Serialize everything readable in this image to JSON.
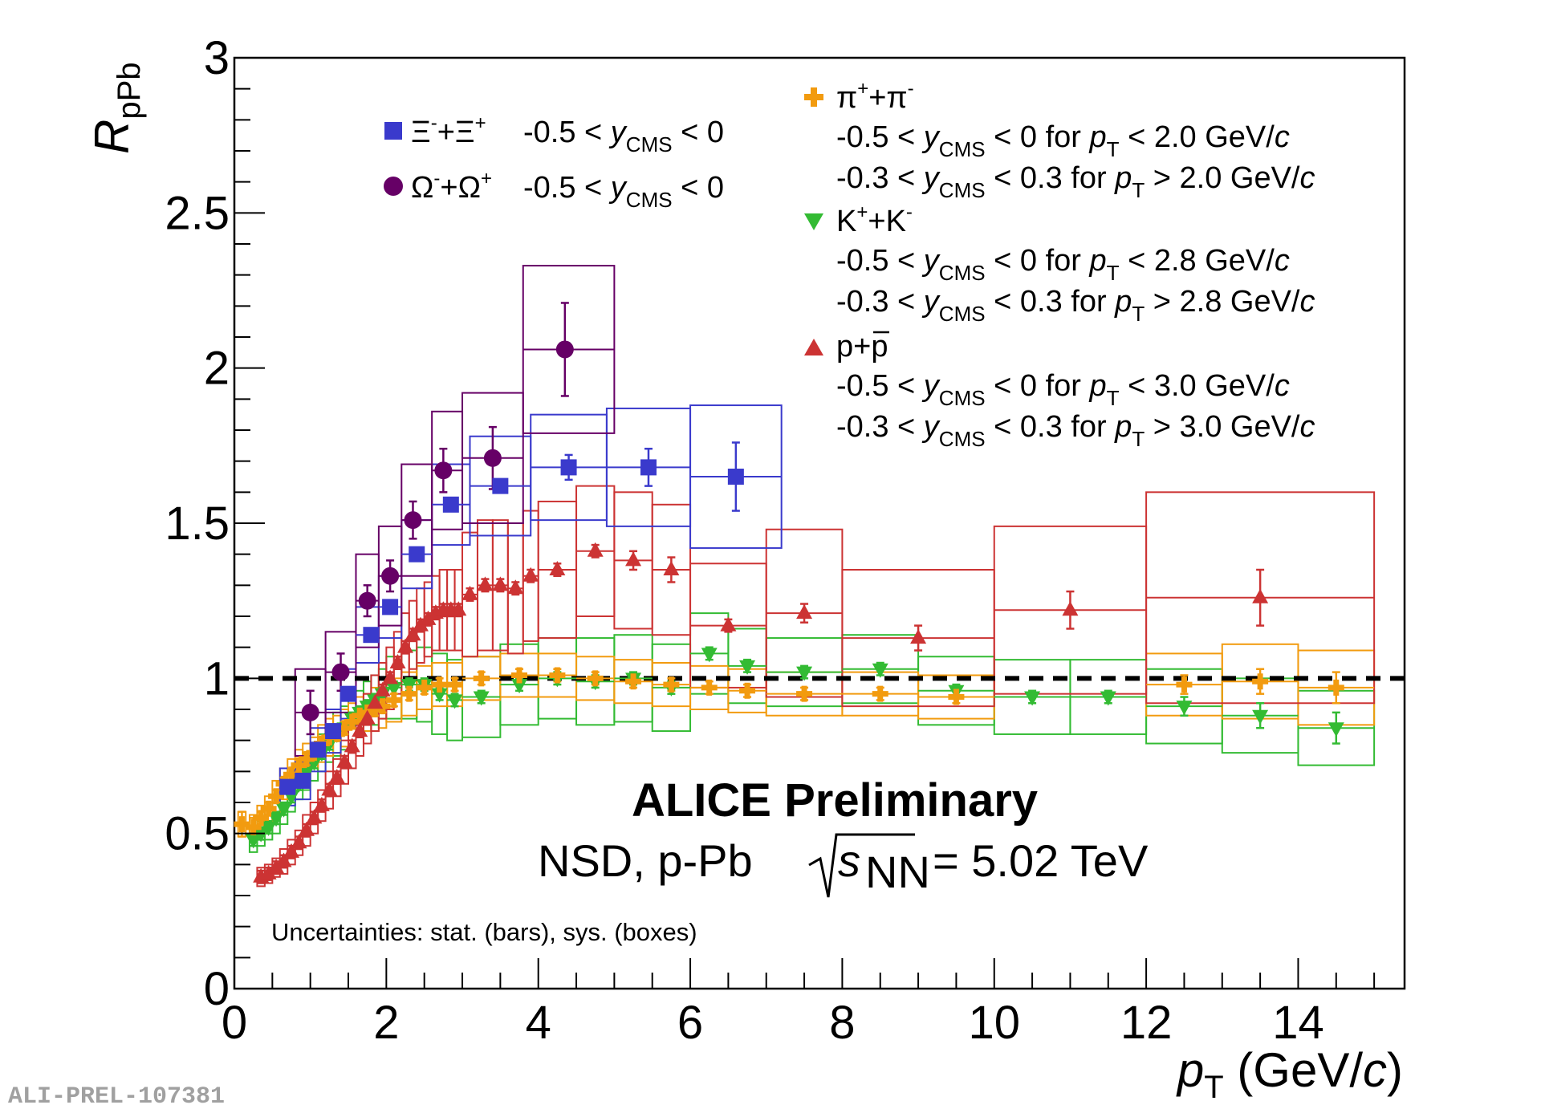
{
  "chart_data": {
    "type": "scatter",
    "title": "",
    "xlabel": "p_T (GeV/c)",
    "ylabel": "R_pPb",
    "xlim": [
      0,
      15.4
    ],
    "ylim": [
      0,
      3
    ],
    "x_ticks": [
      "0",
      "2",
      "4",
      "6",
      "8",
      "10",
      "12",
      "14"
    ],
    "y_ticks": [
      "0",
      "0.5",
      "1",
      "1.5",
      "2",
      "2.5",
      "3"
    ],
    "reference_line": 1.0,
    "experiment_label": "ALICE Preliminary",
    "system_label": {
      "prefix": "NSD, p-Pb",
      "s": "s",
      "sub": "NN",
      "suffix": "= 5.02 TeV"
    },
    "uncertainty_note": "Uncertainties: stat. (bars), sys. (boxes)",
    "figure_id": "ALI-PREL-107381",
    "colors": {
      "xi": "#3a3acc",
      "omega": "#660066",
      "pion": "#f29b0f",
      "kaon": "#33bb33",
      "proton": "#cc3333"
    },
    "legend": {
      "xi": {
        "label": "Ξ⁻+Ξ⁺",
        "range": "-0.5 < y_CMS < 0"
      },
      "omega": {
        "label": "Ω⁻+Ω⁺",
        "range": "-0.5 < y_CMS < 0"
      },
      "pion": {
        "label": "π⁺+π⁻",
        "rows": [
          "-0.5 < y_CMS < 0    for p_T < 2.0 GeV/c",
          "-0.3 < y_CMS < 0.3 for p_T > 2.0 GeV/c"
        ]
      },
      "kaon": {
        "label": "K⁺+K⁻",
        "rows": [
          "-0.5 < y_CMS < 0    for p_T < 2.8 GeV/c",
          "-0.3 < y_CMS < 0.3 for p_T > 2.8 GeV/c"
        ]
      },
      "proton": {
        "label": "p+p",
        "rows": [
          "-0.5 < y_CMS < 0    for p_T < 3.0 GeV/c",
          "-0.3 < y_CMS < 0.3 for p_T > 3.0 GeV/c"
        ]
      }
    },
    "series": [
      {
        "name": "Xi",
        "key": "xi",
        "marker": "square",
        "x": [
          0.7,
          0.9,
          1.1,
          1.3,
          1.5,
          1.8,
          2.05,
          2.4,
          2.85,
          3.5,
          4.4,
          5.45,
          6.6
        ],
        "y": [
          0.65,
          0.67,
          0.77,
          0.83,
          0.95,
          1.14,
          1.23,
          1.4,
          1.56,
          1.62,
          1.68,
          1.68,
          1.65
        ],
        "stat": [
          0.02,
          0.02,
          0.02,
          0.02,
          0.02,
          0.02,
          0.02,
          0.02,
          0.02,
          0.02,
          0.04,
          0.06,
          0.11
        ],
        "sys": [
          0.06,
          0.06,
          0.07,
          0.07,
          0.08,
          0.09,
          0.1,
          0.11,
          0.13,
          0.16,
          0.17,
          0.19,
          0.23
        ],
        "bin_lo": [
          0.6,
          0.8,
          1.0,
          1.2,
          1.4,
          1.6,
          1.9,
          2.2,
          2.6,
          3.1,
          3.9,
          4.9,
          6.0
        ],
        "bin_hi": [
          0.8,
          1.0,
          1.2,
          1.4,
          1.6,
          1.9,
          2.2,
          2.6,
          3.1,
          3.9,
          4.9,
          6.0,
          7.2
        ]
      },
      {
        "name": "Omega",
        "key": "omega",
        "marker": "circle",
        "x": [
          1.0,
          1.4,
          1.75,
          2.05,
          2.35,
          2.75,
          3.4,
          4.35
        ],
        "y": [
          0.89,
          1.02,
          1.25,
          1.33,
          1.51,
          1.67,
          1.71,
          2.06
        ],
        "stat": [
          0.07,
          0.06,
          0.05,
          0.05,
          0.06,
          0.07,
          0.1,
          0.15
        ],
        "sys": [
          0.14,
          0.13,
          0.15,
          0.16,
          0.18,
          0.19,
          0.21,
          0.27
        ],
        "bin_lo": [
          0.8,
          1.2,
          1.6,
          1.9,
          2.2,
          2.6,
          3.0,
          3.8
        ],
        "bin_hi": [
          1.2,
          1.6,
          1.9,
          2.2,
          2.6,
          3.0,
          3.8,
          5.0
        ]
      },
      {
        "name": "pi+pi",
        "key": "pion",
        "marker": "cross",
        "x": [
          0.1,
          0.25,
          0.35,
          0.45,
          0.55,
          0.65,
          0.75,
          0.85,
          0.95,
          1.05,
          1.15,
          1.25,
          1.35,
          1.45,
          1.55,
          1.65,
          1.75,
          1.85,
          1.95,
          2.1,
          2.3,
          2.5,
          2.7,
          2.9,
          3.25,
          3.75,
          4.25,
          4.75,
          5.25,
          5.75,
          6.25,
          6.75,
          7.5,
          8.5,
          9.5,
          12.5,
          13.5,
          14.5
        ],
        "y": [
          0.53,
          0.52,
          0.55,
          0.58,
          0.62,
          0.66,
          0.69,
          0.72,
          0.74,
          0.76,
          0.79,
          0.81,
          0.82,
          0.84,
          0.86,
          0.88,
          0.89,
          0.9,
          0.91,
          0.93,
          0.95,
          0.97,
          0.98,
          0.98,
          1.0,
          1.01,
          1.01,
          1.0,
          0.99,
          0.98,
          0.97,
          0.96,
          0.95,
          0.95,
          0.94,
          0.98,
          0.99,
          0.97
        ],
        "stat": [
          0.04,
          0.03,
          0.02,
          0.02,
          0.02,
          0.02,
          0.02,
          0.02,
          0.02,
          0.02,
          0.02,
          0.02,
          0.02,
          0.02,
          0.02,
          0.02,
          0.02,
          0.02,
          0.02,
          0.02,
          0.02,
          0.02,
          0.02,
          0.02,
          0.02,
          0.02,
          0.02,
          0.02,
          0.02,
          0.02,
          0.02,
          0.02,
          0.02,
          0.02,
          0.02,
          0.03,
          0.04,
          0.05
        ],
        "sys": [
          0.04,
          0.04,
          0.04,
          0.04,
          0.05,
          0.05,
          0.05,
          0.05,
          0.05,
          0.05,
          0.06,
          0.06,
          0.06,
          0.06,
          0.06,
          0.06,
          0.06,
          0.07,
          0.07,
          0.07,
          0.07,
          0.07,
          0.07,
          0.07,
          0.07,
          0.07,
          0.07,
          0.07,
          0.07,
          0.07,
          0.07,
          0.07,
          0.07,
          0.07,
          0.07,
          0.1,
          0.12,
          0.12
        ],
        "bin_lo": [
          0.05,
          0.2,
          0.3,
          0.4,
          0.5,
          0.6,
          0.7,
          0.8,
          0.9,
          1.0,
          1.1,
          1.2,
          1.3,
          1.4,
          1.5,
          1.6,
          1.7,
          1.8,
          1.9,
          2.0,
          2.2,
          2.4,
          2.6,
          2.8,
          3.0,
          3.5,
          4.0,
          4.5,
          5.0,
          5.5,
          6.0,
          6.5,
          7.0,
          8.0,
          9.0,
          12.0,
          13.0,
          14.0
        ],
        "bin_hi": [
          0.15,
          0.3,
          0.4,
          0.5,
          0.6,
          0.7,
          0.8,
          0.9,
          1.0,
          1.1,
          1.2,
          1.3,
          1.4,
          1.5,
          1.6,
          1.7,
          1.8,
          1.9,
          2.0,
          2.2,
          2.4,
          2.6,
          2.8,
          3.0,
          3.5,
          4.0,
          4.5,
          5.0,
          5.5,
          6.0,
          6.5,
          7.0,
          8.0,
          9.0,
          10.0,
          13.0,
          14.0,
          15.0
        ]
      },
      {
        "name": "K+K",
        "key": "kaon",
        "marker": "triangle-down",
        "x": [
          0.25,
          0.35,
          0.45,
          0.55,
          0.65,
          0.75,
          0.85,
          0.95,
          1.05,
          1.15,
          1.25,
          1.35,
          1.45,
          1.55,
          1.65,
          1.75,
          1.85,
          1.95,
          2.1,
          2.3,
          2.5,
          2.7,
          2.9,
          3.25,
          3.75,
          4.25,
          4.75,
          5.25,
          5.75,
          6.25,
          6.75,
          7.5,
          8.5,
          9.5,
          10.5,
          11.5,
          12.5,
          13.5,
          14.5
        ],
        "y": [
          0.48,
          0.5,
          0.52,
          0.55,
          0.58,
          0.62,
          0.66,
          0.7,
          0.73,
          0.76,
          0.79,
          0.82,
          0.84,
          0.87,
          0.89,
          0.91,
          0.93,
          0.95,
          0.97,
          0.98,
          0.98,
          0.95,
          0.93,
          0.94,
          0.98,
          1.0,
          0.99,
          1.0,
          0.97,
          1.08,
          1.04,
          1.02,
          1.03,
          0.96,
          0.94,
          0.94,
          0.91,
          0.88,
          0.84
        ],
        "stat": [
          0.02,
          0.02,
          0.02,
          0.02,
          0.02,
          0.02,
          0.02,
          0.02,
          0.02,
          0.02,
          0.02,
          0.02,
          0.02,
          0.02,
          0.02,
          0.02,
          0.02,
          0.02,
          0.02,
          0.02,
          0.02,
          0.02,
          0.02,
          0.02,
          0.02,
          0.02,
          0.02,
          0.02,
          0.02,
          0.02,
          0.02,
          0.02,
          0.02,
          0.02,
          0.02,
          0.02,
          0.03,
          0.04,
          0.05
        ],
        "sys": [
          0.04,
          0.04,
          0.04,
          0.05,
          0.05,
          0.05,
          0.05,
          0.06,
          0.06,
          0.06,
          0.06,
          0.07,
          0.07,
          0.07,
          0.07,
          0.08,
          0.08,
          0.08,
          0.1,
          0.11,
          0.12,
          0.13,
          0.13,
          0.13,
          0.13,
          0.13,
          0.14,
          0.14,
          0.14,
          0.13,
          0.12,
          0.11,
          0.11,
          0.11,
          0.12,
          0.12,
          0.12,
          0.12,
          0.12
        ],
        "bin_lo": [
          0.2,
          0.3,
          0.4,
          0.5,
          0.6,
          0.7,
          0.8,
          0.9,
          1.0,
          1.1,
          1.2,
          1.3,
          1.4,
          1.5,
          1.6,
          1.7,
          1.8,
          1.9,
          2.0,
          2.2,
          2.4,
          2.6,
          2.8,
          3.0,
          3.5,
          4.0,
          4.5,
          5.0,
          5.5,
          6.0,
          6.5,
          7.0,
          8.0,
          9.0,
          10.0,
          11.0,
          12.0,
          13.0,
          14.0
        ],
        "bin_hi": [
          0.3,
          0.4,
          0.5,
          0.6,
          0.7,
          0.8,
          0.9,
          1.0,
          1.1,
          1.2,
          1.3,
          1.4,
          1.5,
          1.6,
          1.7,
          1.8,
          1.9,
          2.0,
          2.2,
          2.4,
          2.6,
          2.8,
          3.0,
          3.5,
          4.0,
          4.5,
          5.0,
          5.5,
          6.0,
          6.5,
          7.0,
          8.0,
          9.0,
          10.0,
          11.0,
          12.0,
          13.0,
          14.0,
          15.0
        ]
      },
      {
        "name": "p+pbar",
        "key": "proton",
        "marker": "triangle-up",
        "x": [
          0.35,
          0.45,
          0.55,
          0.65,
          0.75,
          0.85,
          0.95,
          1.05,
          1.15,
          1.25,
          1.35,
          1.45,
          1.55,
          1.65,
          1.75,
          1.85,
          1.95,
          2.05,
          2.15,
          2.25,
          2.35,
          2.45,
          2.55,
          2.65,
          2.75,
          2.85,
          2.95,
          3.1,
          3.3,
          3.5,
          3.7,
          3.9,
          4.25,
          4.75,
          5.25,
          5.75,
          6.5,
          7.5,
          9.0,
          11.0,
          13.5
        ],
        "y": [
          0.36,
          0.37,
          0.39,
          0.41,
          0.44,
          0.47,
          0.51,
          0.55,
          0.59,
          0.64,
          0.68,
          0.73,
          0.78,
          0.83,
          0.87,
          0.92,
          0.96,
          1.0,
          1.05,
          1.1,
          1.14,
          1.17,
          1.19,
          1.21,
          1.22,
          1.22,
          1.22,
          1.27,
          1.3,
          1.3,
          1.29,
          1.33,
          1.35,
          1.41,
          1.38,
          1.35,
          1.17,
          1.21,
          1.13,
          1.22,
          1.26
        ],
        "stat": [
          0.02,
          0.02,
          0.02,
          0.02,
          0.02,
          0.02,
          0.02,
          0.02,
          0.02,
          0.02,
          0.02,
          0.02,
          0.02,
          0.02,
          0.02,
          0.02,
          0.02,
          0.02,
          0.02,
          0.02,
          0.02,
          0.02,
          0.02,
          0.02,
          0.02,
          0.02,
          0.02,
          0.02,
          0.02,
          0.02,
          0.02,
          0.02,
          0.02,
          0.02,
          0.03,
          0.04,
          0.02,
          0.03,
          0.04,
          0.06,
          0.09
        ],
        "sys": [
          0.03,
          0.03,
          0.03,
          0.04,
          0.04,
          0.04,
          0.05,
          0.05,
          0.05,
          0.06,
          0.06,
          0.07,
          0.07,
          0.08,
          0.08,
          0.09,
          0.09,
          0.1,
          0.1,
          0.11,
          0.11,
          0.12,
          0.12,
          0.12,
          0.13,
          0.13,
          0.13,
          0.2,
          0.21,
          0.21,
          0.21,
          0.21,
          0.22,
          0.21,
          0.22,
          0.21,
          0.2,
          0.27,
          0.22,
          0.27,
          0.34
        ],
        "bin_lo": [
          0.3,
          0.4,
          0.5,
          0.6,
          0.7,
          0.8,
          0.9,
          1.0,
          1.1,
          1.2,
          1.3,
          1.4,
          1.5,
          1.6,
          1.7,
          1.8,
          1.9,
          2.0,
          2.1,
          2.2,
          2.3,
          2.4,
          2.5,
          2.6,
          2.7,
          2.8,
          2.9,
          3.0,
          3.2,
          3.4,
          3.6,
          3.8,
          4.0,
          4.5,
          5.0,
          5.5,
          6.0,
          7.0,
          8.0,
          10.0,
          12.0
        ],
        "bin_hi": [
          0.4,
          0.5,
          0.6,
          0.7,
          0.8,
          0.9,
          1.0,
          1.1,
          1.2,
          1.3,
          1.4,
          1.5,
          1.6,
          1.7,
          1.8,
          1.9,
          2.0,
          2.1,
          2.2,
          2.3,
          2.4,
          2.5,
          2.6,
          2.7,
          2.8,
          2.9,
          3.0,
          3.2,
          3.4,
          3.6,
          3.8,
          4.0,
          4.5,
          5.0,
          5.5,
          6.0,
          7.0,
          8.0,
          10.0,
          12.0,
          15.0
        ]
      }
    ]
  }
}
